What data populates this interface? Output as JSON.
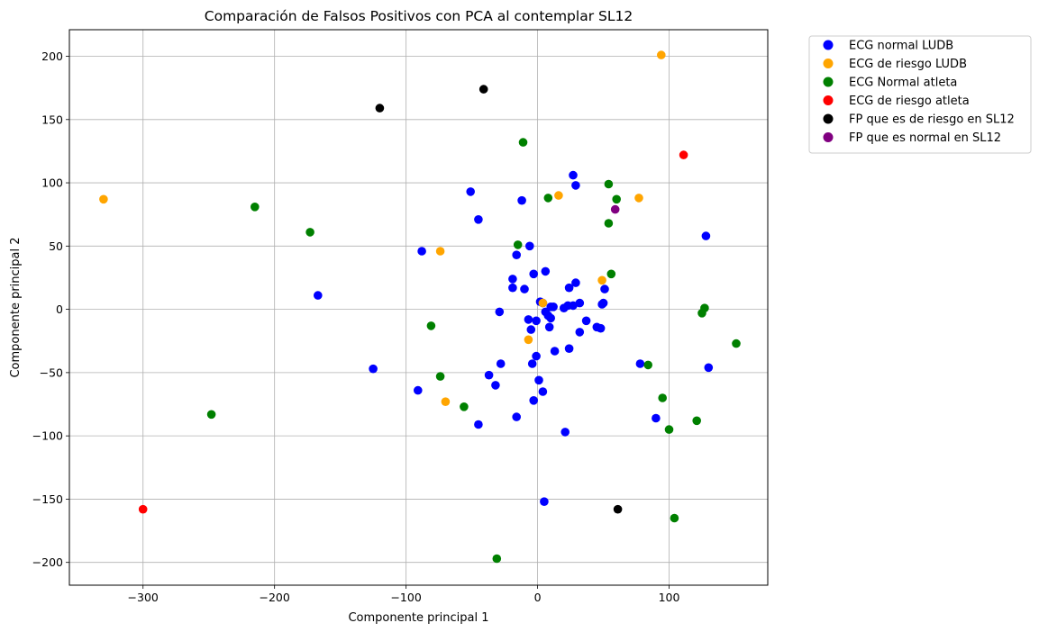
{
  "chart_data": {
    "type": "scatter",
    "title": "Comparación de Falsos Positivos con PCA al contemplar SL12",
    "xlabel": "Componente principal 1",
    "ylabel": "Componente principal 2",
    "xlim": [
      -356,
      175
    ],
    "ylim": [
      -218,
      221
    ],
    "xticks": [
      -300,
      -200,
      -100,
      0,
      100
    ],
    "yticks": [
      -200,
      -150,
      -100,
      -50,
      0,
      50,
      100,
      150,
      200
    ],
    "xtick_labels": [
      "−300",
      "−200",
      "−100",
      "0",
      "100"
    ],
    "ytick_labels": [
      "−200",
      "−150",
      "−100",
      "−50",
      "0",
      "50",
      "100",
      "150",
      "200"
    ],
    "grid": true,
    "legend_position": "outside upper right",
    "series": [
      {
        "name": "ECG normal LUDB",
        "color": "#0000ff",
        "points": [
          [
            27,
            106
          ],
          [
            29,
            98
          ],
          [
            -51,
            93
          ],
          [
            -12,
            86
          ],
          [
            -45,
            71
          ],
          [
            128,
            58
          ],
          [
            -88,
            46
          ],
          [
            -6,
            50
          ],
          [
            -16,
            43
          ],
          [
            6,
            30
          ],
          [
            -3,
            28
          ],
          [
            -19,
            24
          ],
          [
            -19,
            17
          ],
          [
            -10,
            16
          ],
          [
            29,
            21
          ],
          [
            24,
            17
          ],
          [
            51,
            16
          ],
          [
            -167,
            11
          ],
          [
            2,
            6
          ],
          [
            4,
            5
          ],
          [
            32,
            5
          ],
          [
            49,
            4
          ],
          [
            50,
            5
          ],
          [
            27,
            3
          ],
          [
            23,
            3
          ],
          [
            12,
            2
          ],
          [
            10,
            2
          ],
          [
            20,
            1
          ],
          [
            -29,
            -2
          ],
          [
            6,
            -2
          ],
          [
            8,
            -5
          ],
          [
            10,
            -7
          ],
          [
            -7,
            -8
          ],
          [
            -1,
            -9
          ],
          [
            37,
            -9
          ],
          [
            45,
            -14
          ],
          [
            48,
            -15
          ],
          [
            9,
            -14
          ],
          [
            -5,
            -16
          ],
          [
            32,
            -18
          ],
          [
            24,
            -31
          ],
          [
            13,
            -33
          ],
          [
            -1,
            -37
          ],
          [
            -125,
            -47
          ],
          [
            78,
            -43
          ],
          [
            130,
            -46
          ],
          [
            -4,
            -43
          ],
          [
            -28,
            -43
          ],
          [
            -37,
            -52
          ],
          [
            1,
            -56
          ],
          [
            -32,
            -60
          ],
          [
            4,
            -65
          ],
          [
            -91,
            -64
          ],
          [
            -3,
            -72
          ],
          [
            -16,
            -85
          ],
          [
            90,
            -86
          ],
          [
            -45,
            -91
          ],
          [
            21,
            -97
          ],
          [
            5,
            -152
          ]
        ]
      },
      {
        "name": "ECG de riesgo LUDB",
        "color": "#ffa500",
        "points": [
          [
            94,
            201
          ],
          [
            -330,
            87
          ],
          [
            16,
            90
          ],
          [
            77,
            88
          ],
          [
            -74,
            46
          ],
          [
            49,
            23
          ],
          [
            4,
            5
          ],
          [
            -7,
            -24
          ],
          [
            -70,
            -73
          ]
        ]
      },
      {
        "name": "ECG Normal atleta",
        "color": "#008000",
        "points": [
          [
            -11,
            132
          ],
          [
            54,
            99
          ],
          [
            8,
            88
          ],
          [
            60,
            87
          ],
          [
            -215,
            81
          ],
          [
            54,
            68
          ],
          [
            -173,
            61
          ],
          [
            -15,
            51
          ],
          [
            56,
            28
          ],
          [
            127,
            1
          ],
          [
            125,
            -3
          ],
          [
            -81,
            -13
          ],
          [
            151,
            -27
          ],
          [
            -74,
            -53
          ],
          [
            84,
            -44
          ],
          [
            95,
            -70
          ],
          [
            -56,
            -77
          ],
          [
            -248,
            -83
          ],
          [
            121,
            -88
          ],
          [
            100,
            -95
          ],
          [
            104,
            -165
          ],
          [
            -31,
            -197
          ]
        ]
      },
      {
        "name": "ECG de riesgo atleta",
        "color": "#ff0000",
        "points": [
          [
            111,
            122
          ],
          [
            -300,
            -158
          ]
        ]
      },
      {
        "name": "FP que es de riesgo en SL12",
        "color": "#000000",
        "points": [
          [
            -41,
            174
          ],
          [
            -120,
            159
          ],
          [
            61,
            -158
          ]
        ]
      },
      {
        "name": "FP que es normal en SL12",
        "color": "#800080",
        "points": [
          [
            59,
            79
          ]
        ]
      }
    ]
  }
}
